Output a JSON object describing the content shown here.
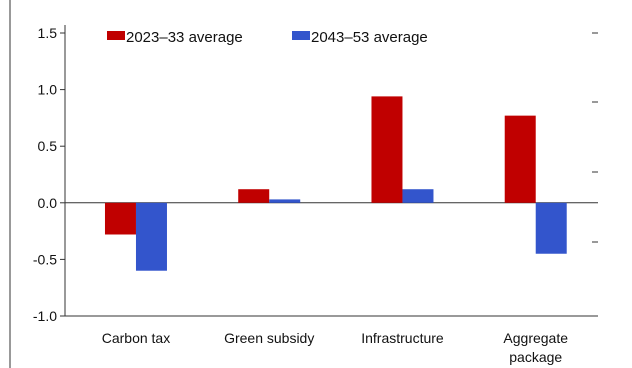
{
  "chart_data": {
    "type": "bar",
    "title": "",
    "xlabel": "",
    "ylabel": "",
    "categories": [
      [
        "Carbon tax"
      ],
      [
        "Green subsidy"
      ],
      [
        "Infrastructure"
      ],
      [
        "Aggregate",
        "package"
      ]
    ],
    "series": [
      {
        "name": "2023–33 average",
        "color": "#c00000",
        "values": [
          -0.28,
          0.12,
          0.94,
          0.77
        ]
      },
      {
        "name": "2043–53 average",
        "color": "#3355cc",
        "values": [
          -0.6,
          0.03,
          0.12,
          -0.45
        ]
      }
    ],
    "ylim": [
      -1.0,
      1.5
    ],
    "yticks": [
      "1.5",
      "1.0",
      "0.5",
      "0.0",
      "-0.5",
      "-1.0"
    ],
    "legend_position": "top",
    "grid": false
  }
}
